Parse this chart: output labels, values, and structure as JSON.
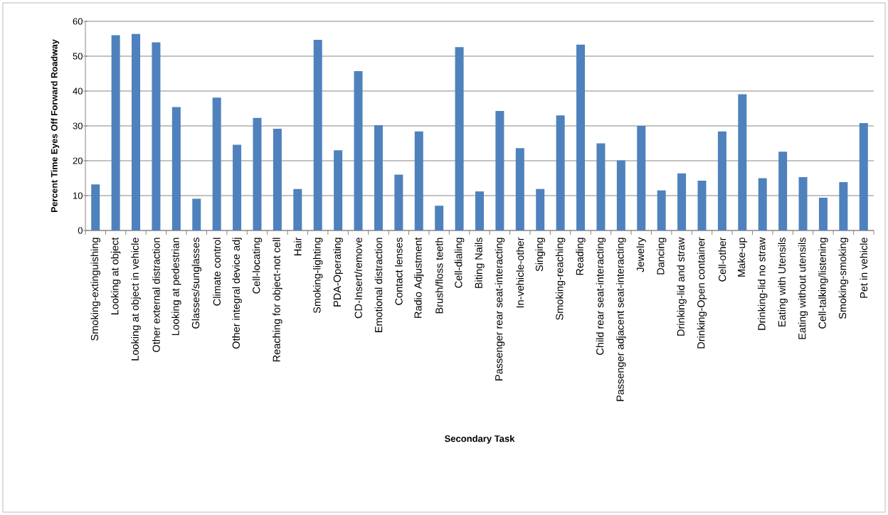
{
  "chart_data": {
    "type": "bar",
    "xlabel": "Secondary Task",
    "ylabel": "Percent Time Eyes Off Forward Roadway",
    "categories": [
      "Smoking-extinguishing",
      "Looking at object",
      "Looking at object in vehicle",
      "Other external distraction",
      "Looking at pedestrian",
      "Glasses/sunglasses",
      "Climate control",
      "Other integral device adj",
      "Cell-locating",
      "Reaching for object-not cell",
      "Hair",
      "Smoking-lighting",
      "PDA-Operating",
      "CD-Insert/remove",
      "Emotional distraction",
      "Contact lenses",
      "Radio Adjustment",
      "Brush/floss teeth",
      "Cell-dialing",
      "Biting Nails",
      "Passenger rear seat-interacting",
      "In-vehicle-other",
      "Singing",
      "Smoking-reaching",
      "Reading",
      "Child rear seat-interacting",
      "Passenger adjacent seat-interacting",
      "Jewelry",
      "Dancing",
      "Drinking-lid and straw",
      "Drinking-Open container",
      "Cell-other",
      "Make-up",
      "Drinking-lid no straw",
      "Eating with Utensils",
      "Eating without utensils",
      "Cell-talking/listening",
      "Smoking-smoking",
      "Pet in vehicle"
    ],
    "values": [
      13.2,
      56,
      56.4,
      54,
      35.4,
      9.1,
      38.1,
      24.6,
      32.3,
      29.2,
      11.9,
      54.7,
      23,
      45.7,
      30.2,
      16,
      28.4,
      7.1,
      52.6,
      11.2,
      34.3,
      23.6,
      11.9,
      33,
      53.3,
      25,
      20.1,
      30,
      11.5,
      16.4,
      14.3,
      28.4,
      39.1,
      15,
      22.6,
      15.3,
      9.4,
      13.9,
      30.8
    ],
    "color": "#4f81bd",
    "ylim": [
      0,
      60
    ],
    "yticks": [
      0,
      10,
      20,
      30,
      40,
      50,
      60
    ],
    "grid": "y"
  }
}
